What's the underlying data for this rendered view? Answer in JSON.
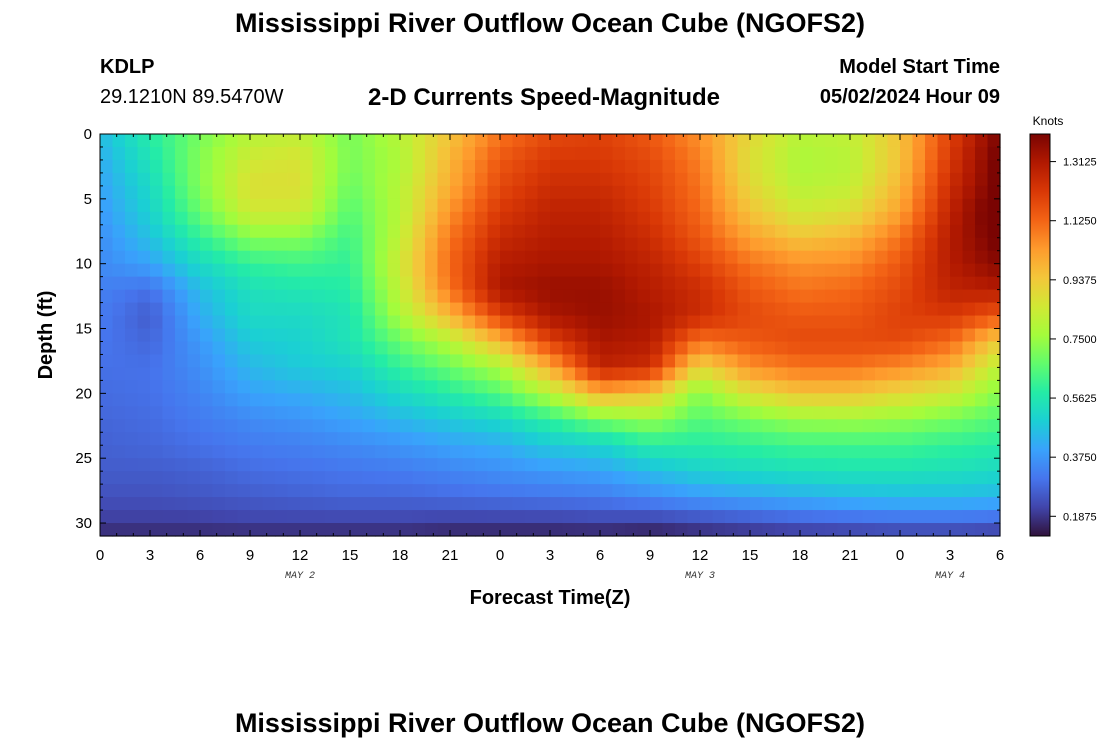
{
  "header": {
    "title": "Mississippi River Outflow Ocean Cube (NGOFS2)",
    "station_id": "KDLP",
    "station_coords": "29.1210N  89.5470W",
    "subtitle": "2-D Currents Speed-Magnitude",
    "model_label": "Model Start Time",
    "model_time": "05/02/2024 Hour 09"
  },
  "footer": {
    "title": "Mississippi River Outflow Ocean Cube (NGOFS2)"
  },
  "colors": {
    "colormap": [
      "#30123b",
      "#4145ab",
      "#4675ed",
      "#39a2fc",
      "#1bcfd4",
      "#24eca6",
      "#61fc6c",
      "#a4fc3b",
      "#d1e834",
      "#f3c63a",
      "#fe9b2d",
      "#f36315",
      "#d93806",
      "#b11901",
      "#7a0402"
    ]
  },
  "chart_data": {
    "type": "heatmap",
    "title": "2-D Currents Speed-Magnitude",
    "xlabel": "Forecast Time(Z)",
    "ylabel": "Depth (ft)",
    "units": "Knots",
    "x_hours": [
      0,
      3,
      6,
      9,
      12,
      15,
      18,
      21,
      24,
      27,
      30,
      33,
      36,
      39,
      42,
      45,
      48,
      51,
      54
    ],
    "x_tick_labels": [
      "0",
      "3",
      "6",
      "9",
      "12",
      "15",
      "18",
      "21",
      "0",
      "3",
      "6",
      "9",
      "12",
      "15",
      "18",
      "21",
      "0",
      "3",
      "6"
    ],
    "xlim": [
      0,
      54
    ],
    "date_labels": [
      {
        "hour": 12,
        "label": "MAY 2"
      },
      {
        "hour": 36,
        "label": "MAY 3"
      },
      {
        "hour": 51,
        "label": "MAY 4"
      }
    ],
    "y_ticks": [
      0,
      5,
      10,
      15,
      20,
      25,
      30
    ],
    "ylim": [
      0,
      31
    ],
    "colorbar": {
      "range": [
        0.125,
        1.4
      ],
      "ticks": [
        0.1875,
        0.375,
        0.5625,
        0.75,
        0.9375,
        1.125,
        1.3125
      ],
      "tick_labels": [
        "0.1875",
        "0.3750",
        "0.5625",
        "0.7500",
        "0.9375",
        "1.1250",
        "1.3125"
      ]
    },
    "depths": [
      0,
      2,
      4,
      6,
      8,
      10,
      12,
      14,
      16,
      18,
      20,
      22,
      24,
      26,
      28,
      30,
      31
    ],
    "grid_hours": [
      0,
      3,
      6,
      9,
      12,
      15,
      18,
      21,
      24,
      27,
      30,
      33,
      36,
      39,
      42,
      45,
      48,
      51,
      54
    ],
    "speeds": [
      [
        0.45,
        0.58,
        0.7,
        0.8,
        0.82,
        0.7,
        0.8,
        0.95,
        1.1,
        1.18,
        1.2,
        1.15,
        1.05,
        0.9,
        0.8,
        0.82,
        0.95,
        1.2,
        1.4
      ],
      [
        0.42,
        0.55,
        0.72,
        0.85,
        0.87,
        0.7,
        0.78,
        0.98,
        1.15,
        1.22,
        1.22,
        1.18,
        1.08,
        0.88,
        0.78,
        0.8,
        0.95,
        1.22,
        1.42
      ],
      [
        0.4,
        0.52,
        0.72,
        0.88,
        0.88,
        0.68,
        0.8,
        1.0,
        1.18,
        1.25,
        1.25,
        1.2,
        1.1,
        0.9,
        0.8,
        0.82,
        0.98,
        1.25,
        1.42
      ],
      [
        0.38,
        0.5,
        0.68,
        0.85,
        0.85,
        0.65,
        0.8,
        1.05,
        1.22,
        1.28,
        1.28,
        1.22,
        1.12,
        0.95,
        0.85,
        0.88,
        1.02,
        1.28,
        1.45
      ],
      [
        0.36,
        0.46,
        0.6,
        0.72,
        0.72,
        0.62,
        0.82,
        1.1,
        1.26,
        1.3,
        1.3,
        1.25,
        1.15,
        1.02,
        0.95,
        0.98,
        1.1,
        1.3,
        1.42
      ],
      [
        0.35,
        0.4,
        0.52,
        0.6,
        0.62,
        0.6,
        0.85,
        1.12,
        1.3,
        1.32,
        1.32,
        1.28,
        1.2,
        1.1,
        1.05,
        1.06,
        1.15,
        1.3,
        1.38
      ],
      [
        0.33,
        0.3,
        0.45,
        0.54,
        0.56,
        0.58,
        0.82,
        1.1,
        1.32,
        1.35,
        1.35,
        1.3,
        1.25,
        1.15,
        1.1,
        1.12,
        1.18,
        1.28,
        1.3
      ],
      [
        0.32,
        0.26,
        0.42,
        0.52,
        0.52,
        0.55,
        0.78,
        0.98,
        1.2,
        1.32,
        1.35,
        1.32,
        1.25,
        1.18,
        1.15,
        1.15,
        1.2,
        1.22,
        1.15
      ],
      [
        0.31,
        0.28,
        0.38,
        0.48,
        0.5,
        0.55,
        0.68,
        0.8,
        0.98,
        1.2,
        1.32,
        1.3,
        1.1,
        1.15,
        1.18,
        1.18,
        1.18,
        1.12,
        0.92
      ],
      [
        0.3,
        0.3,
        0.36,
        0.44,
        0.48,
        0.5,
        0.6,
        0.68,
        0.78,
        1.0,
        1.28,
        1.25,
        0.9,
        1.05,
        1.1,
        1.1,
        1.06,
        1.0,
        0.8
      ],
      [
        0.29,
        0.3,
        0.34,
        0.4,
        0.42,
        0.45,
        0.52,
        0.58,
        0.65,
        0.8,
        1.0,
        0.95,
        0.72,
        0.88,
        0.95,
        0.95,
        0.9,
        0.85,
        0.72
      ],
      [
        0.28,
        0.29,
        0.32,
        0.35,
        0.37,
        0.4,
        0.44,
        0.48,
        0.52,
        0.6,
        0.7,
        0.75,
        0.65,
        0.7,
        0.75,
        0.76,
        0.74,
        0.7,
        0.65
      ],
      [
        0.27,
        0.28,
        0.3,
        0.32,
        0.33,
        0.35,
        0.37,
        0.4,
        0.42,
        0.48,
        0.5,
        0.58,
        0.58,
        0.6,
        0.62,
        0.62,
        0.62,
        0.6,
        0.58
      ],
      [
        0.26,
        0.26,
        0.27,
        0.29,
        0.3,
        0.31,
        0.32,
        0.34,
        0.36,
        0.38,
        0.4,
        0.45,
        0.5,
        0.52,
        0.54,
        0.55,
        0.55,
        0.54,
        0.52
      ],
      [
        0.24,
        0.24,
        0.25,
        0.26,
        0.27,
        0.28,
        0.28,
        0.29,
        0.3,
        0.31,
        0.32,
        0.35,
        0.38,
        0.4,
        0.42,
        0.44,
        0.45,
        0.45,
        0.44
      ],
      [
        0.2,
        0.2,
        0.2,
        0.21,
        0.21,
        0.21,
        0.21,
        0.2,
        0.2,
        0.2,
        0.21,
        0.2,
        0.22,
        0.24,
        0.26,
        0.27,
        0.28,
        0.28,
        0.27
      ],
      [
        0.16,
        0.16,
        0.16,
        0.16,
        0.16,
        0.16,
        0.16,
        0.15,
        0.15,
        0.15,
        0.15,
        0.14,
        0.16,
        0.17,
        0.18,
        0.19,
        0.2,
        0.2,
        0.19
      ]
    ]
  }
}
